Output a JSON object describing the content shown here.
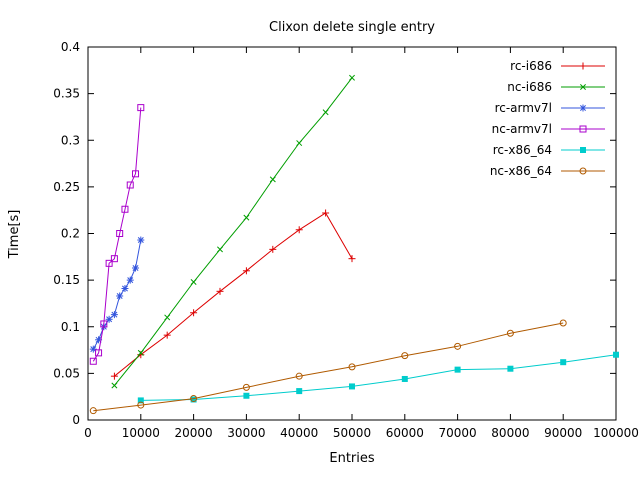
{
  "chart_data": {
    "type": "line",
    "title": "Clixon delete single entry",
    "xlabel": "Entries",
    "ylabel": "Time[s]",
    "xlim": [
      0,
      100000
    ],
    "ylim": [
      0,
      0.4
    ],
    "grid": false,
    "legend_position": "top-right-inside",
    "x_ticks": [
      "0",
      "10000",
      "20000",
      "30000",
      "40000",
      "50000",
      "60000",
      "70000",
      "80000",
      "90000",
      "100000"
    ],
    "y_ticks": [
      "0",
      "0.05",
      "0.1",
      "0.15",
      "0.2",
      "0.25",
      "0.3",
      "0.35",
      "0.4"
    ],
    "series": [
      {
        "name": "rc-i686",
        "color": "#dd0000",
        "marker": "plus",
        "points": [
          [
            5000,
            0.047
          ],
          [
            10000,
            0.07
          ],
          [
            15000,
            0.091
          ],
          [
            20000,
            0.115
          ],
          [
            25000,
            0.138
          ],
          [
            30000,
            0.16
          ],
          [
            35000,
            0.183
          ],
          [
            40000,
            0.204
          ],
          [
            45000,
            0.222
          ],
          [
            50000,
            0.173
          ]
        ]
      },
      {
        "name": "nc-i686",
        "color": "#009e00",
        "marker": "cross",
        "points": [
          [
            5000,
            0.037
          ],
          [
            10000,
            0.072
          ],
          [
            15000,
            0.11
          ],
          [
            20000,
            0.148
          ],
          [
            25000,
            0.183
          ],
          [
            30000,
            0.217
          ],
          [
            35000,
            0.258
          ],
          [
            40000,
            0.297
          ],
          [
            45000,
            0.33
          ],
          [
            50000,
            0.367
          ]
        ]
      },
      {
        "name": "rc-armv7l",
        "color": "#3355dd",
        "marker": "asterisk",
        "points": [
          [
            1000,
            0.076
          ],
          [
            2000,
            0.086
          ],
          [
            3000,
            0.1
          ],
          [
            4000,
            0.108
          ],
          [
            5000,
            0.113
          ],
          [
            6000,
            0.133
          ],
          [
            7000,
            0.141
          ],
          [
            8000,
            0.15
          ],
          [
            9000,
            0.163
          ],
          [
            10000,
            0.193
          ]
        ]
      },
      {
        "name": "nc-armv7l",
        "color": "#aa00cc",
        "marker": "square-open",
        "points": [
          [
            1000,
            0.063
          ],
          [
            2000,
            0.072
          ],
          [
            3000,
            0.103
          ],
          [
            4000,
            0.168
          ],
          [
            5000,
            0.173
          ],
          [
            6000,
            0.2
          ],
          [
            7000,
            0.226
          ],
          [
            8000,
            0.252
          ],
          [
            9000,
            0.264
          ],
          [
            10000,
            0.335
          ]
        ]
      },
      {
        "name": "rc-x86_64",
        "color": "#00cccc",
        "marker": "square-filled",
        "points": [
          [
            10000,
            0.021
          ],
          [
            20000,
            0.022
          ],
          [
            30000,
            0.026
          ],
          [
            40000,
            0.031
          ],
          [
            50000,
            0.036
          ],
          [
            60000,
            0.044
          ],
          [
            70000,
            0.054
          ],
          [
            80000,
            0.055
          ],
          [
            90000,
            0.062
          ],
          [
            100000,
            0.07
          ]
        ]
      },
      {
        "name": "nc-x86_64",
        "color": "#b05a00",
        "marker": "circle-open",
        "points": [
          [
            1000,
            0.01
          ],
          [
            10000,
            0.016
          ],
          [
            20000,
            0.023
          ],
          [
            30000,
            0.035
          ],
          [
            40000,
            0.047
          ],
          [
            50000,
            0.057
          ],
          [
            60000,
            0.069
          ],
          [
            70000,
            0.079
          ],
          [
            80000,
            0.093
          ],
          [
            90000,
            0.104
          ]
        ]
      }
    ]
  }
}
